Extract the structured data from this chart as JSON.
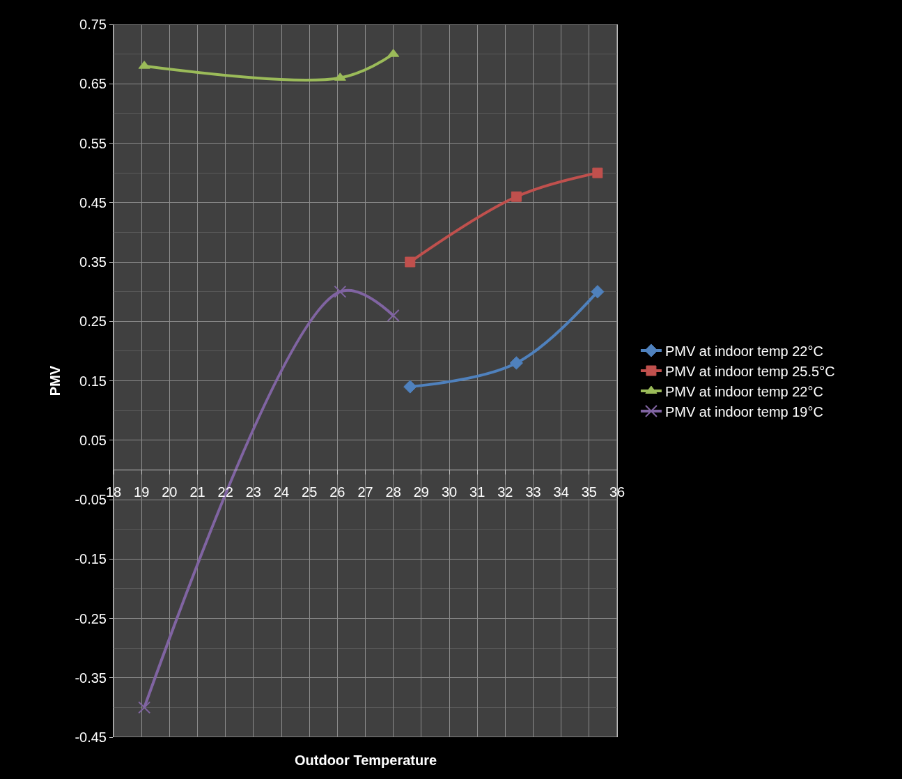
{
  "chart_data": {
    "type": "line",
    "xlabel": "Outdoor Temperature",
    "ylabel": "PMV",
    "xlim": [
      18,
      36
    ],
    "xticks": [
      18,
      19,
      20,
      21,
      22,
      23,
      24,
      25,
      26,
      27,
      28,
      29,
      30,
      31,
      32,
      33,
      34,
      35,
      36
    ],
    "ylim": [
      -0.45,
      0.75
    ],
    "yticks": [
      -0.45,
      -0.35,
      -0.25,
      -0.15,
      -0.05,
      0.05,
      0.15,
      0.25,
      0.35,
      0.45,
      0.55,
      0.65,
      0.75
    ],
    "grid": true,
    "legend": "right",
    "line_style": "solid",
    "series": [
      {
        "name": "PMV at indoor temp 22°C",
        "color": "#4f81bd",
        "marker": "diamond",
        "x": [
          28.6,
          32.4,
          35.3
        ],
        "values": [
          0.14,
          0.18,
          0.3
        ]
      },
      {
        "name": "PMV at indoor temp 25.5°C",
        "color": "#c0504d",
        "marker": "square",
        "x": [
          28.6,
          32.4,
          35.3
        ],
        "values": [
          0.35,
          0.46,
          0.5
        ]
      },
      {
        "name": "PMV at indoor temp 22°C",
        "color": "#9bbb59",
        "marker": "triangle",
        "x": [
          19.1,
          26.1,
          28.0
        ],
        "values": [
          0.68,
          0.66,
          0.7
        ]
      },
      {
        "name": "PMV at indoor temp 19°C",
        "color": "#8064a2",
        "marker": "cross",
        "x": [
          19.1,
          26.1,
          28.0
        ],
        "values": [
          -0.4,
          0.3,
          0.26
        ]
      }
    ]
  }
}
